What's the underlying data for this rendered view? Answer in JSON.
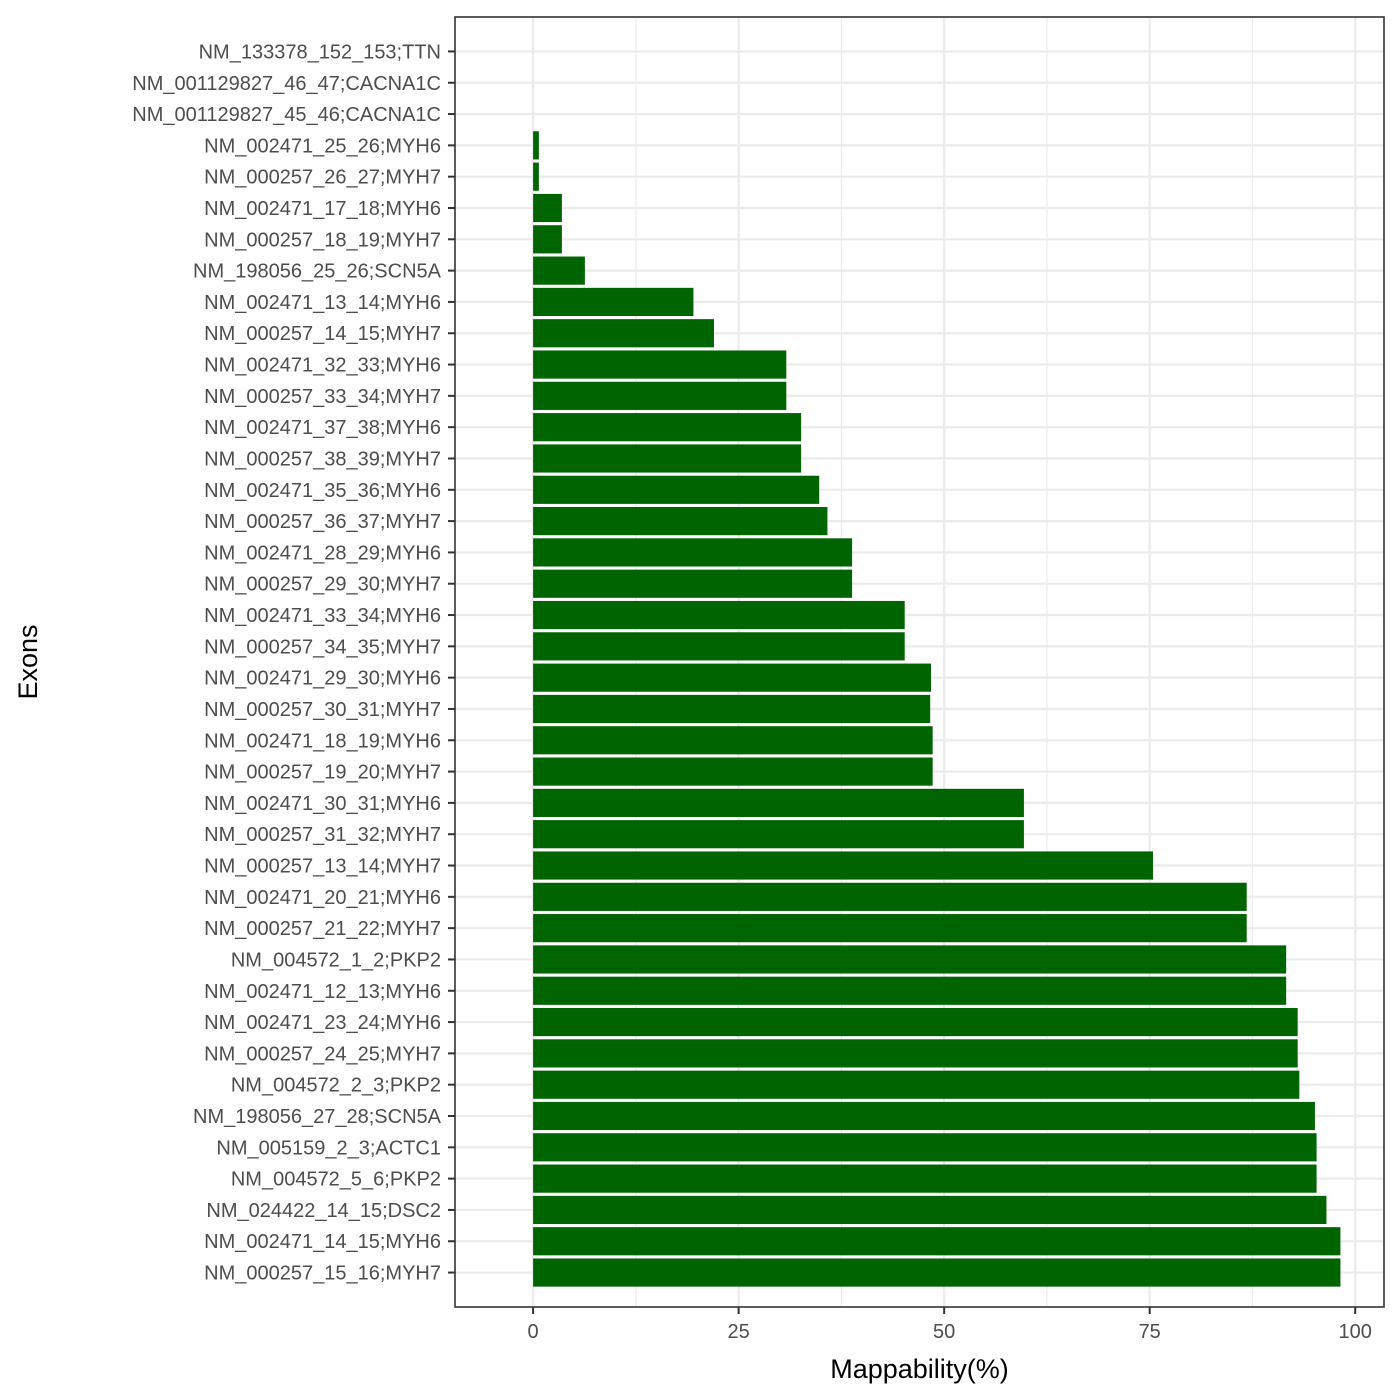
{
  "chart_data": {
    "type": "bar",
    "orientation": "horizontal",
    "xlabel": "Mappability(%)",
    "ylabel": "Exons",
    "xlim": [
      -9.5,
      103.5
    ],
    "x_ticks": [
      0,
      25,
      50,
      75,
      100
    ],
    "grid": true,
    "bar_color": "#006400",
    "categories": [
      "NM_133378_152_153;TTN",
      "NM_001129827_46_47;CACNA1C",
      "NM_001129827_45_46;CACNA1C",
      "NM_002471_25_26;MYH6",
      "NM_000257_26_27;MYH7",
      "NM_002471_17_18;MYH6",
      "NM_000257_18_19;MYH7",
      "NM_198056_25_26;SCN5A",
      "NM_002471_13_14;MYH6",
      "NM_000257_14_15;MYH7",
      "NM_002471_32_33;MYH6",
      "NM_000257_33_34;MYH7",
      "NM_002471_37_38;MYH6",
      "NM_000257_38_39;MYH7",
      "NM_002471_35_36;MYH6",
      "NM_000257_36_37;MYH7",
      "NM_002471_28_29;MYH6",
      "NM_000257_29_30;MYH7",
      "NM_002471_33_34;MYH6",
      "NM_000257_34_35;MYH7",
      "NM_002471_29_30;MYH6",
      "NM_000257_30_31;MYH7",
      "NM_002471_18_19;MYH6",
      "NM_000257_19_20;MYH7",
      "NM_002471_30_31;MYH6",
      "NM_000257_31_32;MYH7",
      "NM_000257_13_14;MYH7",
      "NM_002471_20_21;MYH6",
      "NM_000257_21_22;MYH7",
      "NM_004572_1_2;PKP2",
      "NM_002471_12_13;MYH6",
      "NM_002471_23_24;MYH6",
      "NM_000257_24_25;MYH7",
      "NM_004572_2_3;PKP2",
      "NM_198056_27_28;SCN5A",
      "NM_005159_2_3;ACTC1",
      "NM_004572_5_6;PKP2",
      "NM_024422_14_15;DSC2",
      "NM_002471_14_15;MYH6",
      "NM_000257_15_16;MYH7"
    ],
    "values": [
      0,
      0,
      0,
      0.7,
      0.7,
      3.5,
      3.5,
      6.3,
      19.5,
      22,
      30.8,
      30.8,
      32.6,
      32.6,
      34.8,
      35.8,
      38.8,
      38.8,
      45.2,
      45.2,
      48.4,
      48.3,
      48.6,
      48.6,
      59.7,
      59.7,
      75.4,
      86.8,
      86.8,
      91.6,
      91.6,
      93,
      93,
      93.2,
      95.1,
      95.3,
      95.3,
      96.5,
      98.2,
      98.2
    ]
  }
}
